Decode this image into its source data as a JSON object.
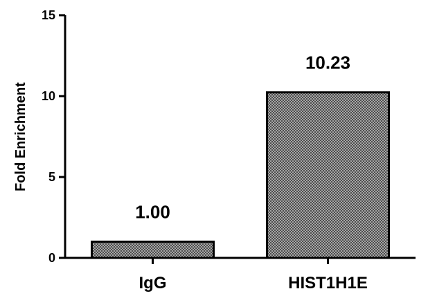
{
  "chart_data": {
    "type": "bar",
    "title": "",
    "xlabel": "",
    "ylabel": "Fold Enrichment",
    "categories": [
      "IgG",
      "HIST1H1E"
    ],
    "values": [
      1.0,
      10.23
    ],
    "value_labels": [
      "1.00",
      "10.23"
    ],
    "ylim": [
      0,
      15
    ],
    "yticks": [
      0,
      5,
      10,
      15
    ],
    "grid": false,
    "legend": "none",
    "bar_fill": "crosshatch-gray",
    "colors": {
      "bar_fill_base": "#a6a6a6",
      "bar_fill_dots": "#4d4d4d",
      "outline": "#000000"
    }
  }
}
